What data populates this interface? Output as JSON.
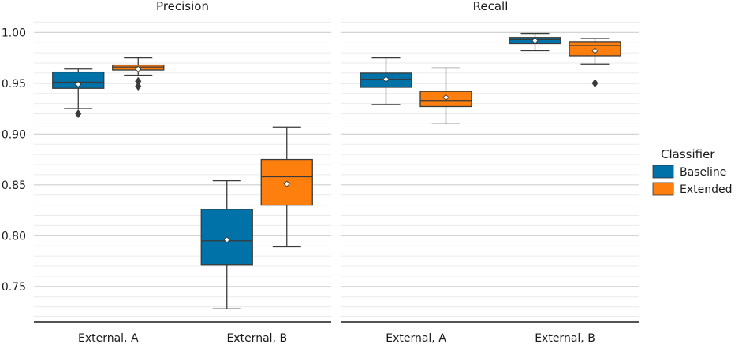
{
  "chart_data": {
    "type": "box",
    "y_axis": {
      "ylim": [
        0.715,
        1.0165
      ],
      "ticks": [
        0.75,
        0.8,
        0.85,
        0.9,
        0.95,
        1.0
      ],
      "tick_labels": [
        "0.75",
        "0.80",
        "0.85",
        "0.90",
        "0.95",
        "1.00"
      ],
      "minor_step": 0.01
    },
    "categories": [
      "External, A",
      "External, B"
    ],
    "legend": {
      "title": "Classifier",
      "entries": [
        {
          "name": "Baseline",
          "color": "#0072a8"
        },
        {
          "name": "Extended",
          "color": "#ff7f0e"
        }
      ]
    },
    "panels": [
      {
        "title": "Precision",
        "boxes": [
          {
            "category": "External, A",
            "classifier": "Baseline",
            "whisker_low": 0.925,
            "q1": 0.945,
            "median": 0.951,
            "q3": 0.961,
            "whisker_high": 0.964,
            "mean": 0.949,
            "outliers": [
              0.92
            ]
          },
          {
            "category": "External, A",
            "classifier": "Extended",
            "whisker_low": 0.958,
            "q1": 0.963,
            "median": 0.966,
            "q3": 0.968,
            "whisker_high": 0.975,
            "mean": 0.964,
            "outliers": [
              0.952,
              0.947
            ]
          },
          {
            "category": "External, B",
            "classifier": "Baseline",
            "whisker_low": 0.728,
            "q1": 0.771,
            "median": 0.795,
            "q3": 0.826,
            "whisker_high": 0.854,
            "mean": 0.796,
            "outliers": []
          },
          {
            "category": "External, B",
            "classifier": "Extended",
            "whisker_low": 0.789,
            "q1": 0.83,
            "median": 0.858,
            "q3": 0.875,
            "whisker_high": 0.907,
            "mean": 0.851,
            "outliers": []
          }
        ]
      },
      {
        "title": "Recall",
        "boxes": [
          {
            "category": "External, A",
            "classifier": "Baseline",
            "whisker_low": 0.929,
            "q1": 0.946,
            "median": 0.954,
            "q3": 0.96,
            "whisker_high": 0.975,
            "mean": 0.954,
            "outliers": []
          },
          {
            "category": "External, A",
            "classifier": "Extended",
            "whisker_low": 0.91,
            "q1": 0.927,
            "median": 0.933,
            "q3": 0.942,
            "whisker_high": 0.965,
            "mean": 0.936,
            "outliers": []
          },
          {
            "category": "External, B",
            "classifier": "Baseline",
            "whisker_low": 0.982,
            "q1": 0.989,
            "median": 0.993,
            "q3": 0.995,
            "whisker_high": 0.999,
            "mean": 0.992,
            "outliers": []
          },
          {
            "category": "External, B",
            "classifier": "Extended",
            "whisker_low": 0.969,
            "q1": 0.977,
            "median": 0.987,
            "q3": 0.991,
            "whisker_high": 0.994,
            "mean": 0.982,
            "outliers": [
              0.95
            ]
          }
        ]
      }
    ]
  }
}
